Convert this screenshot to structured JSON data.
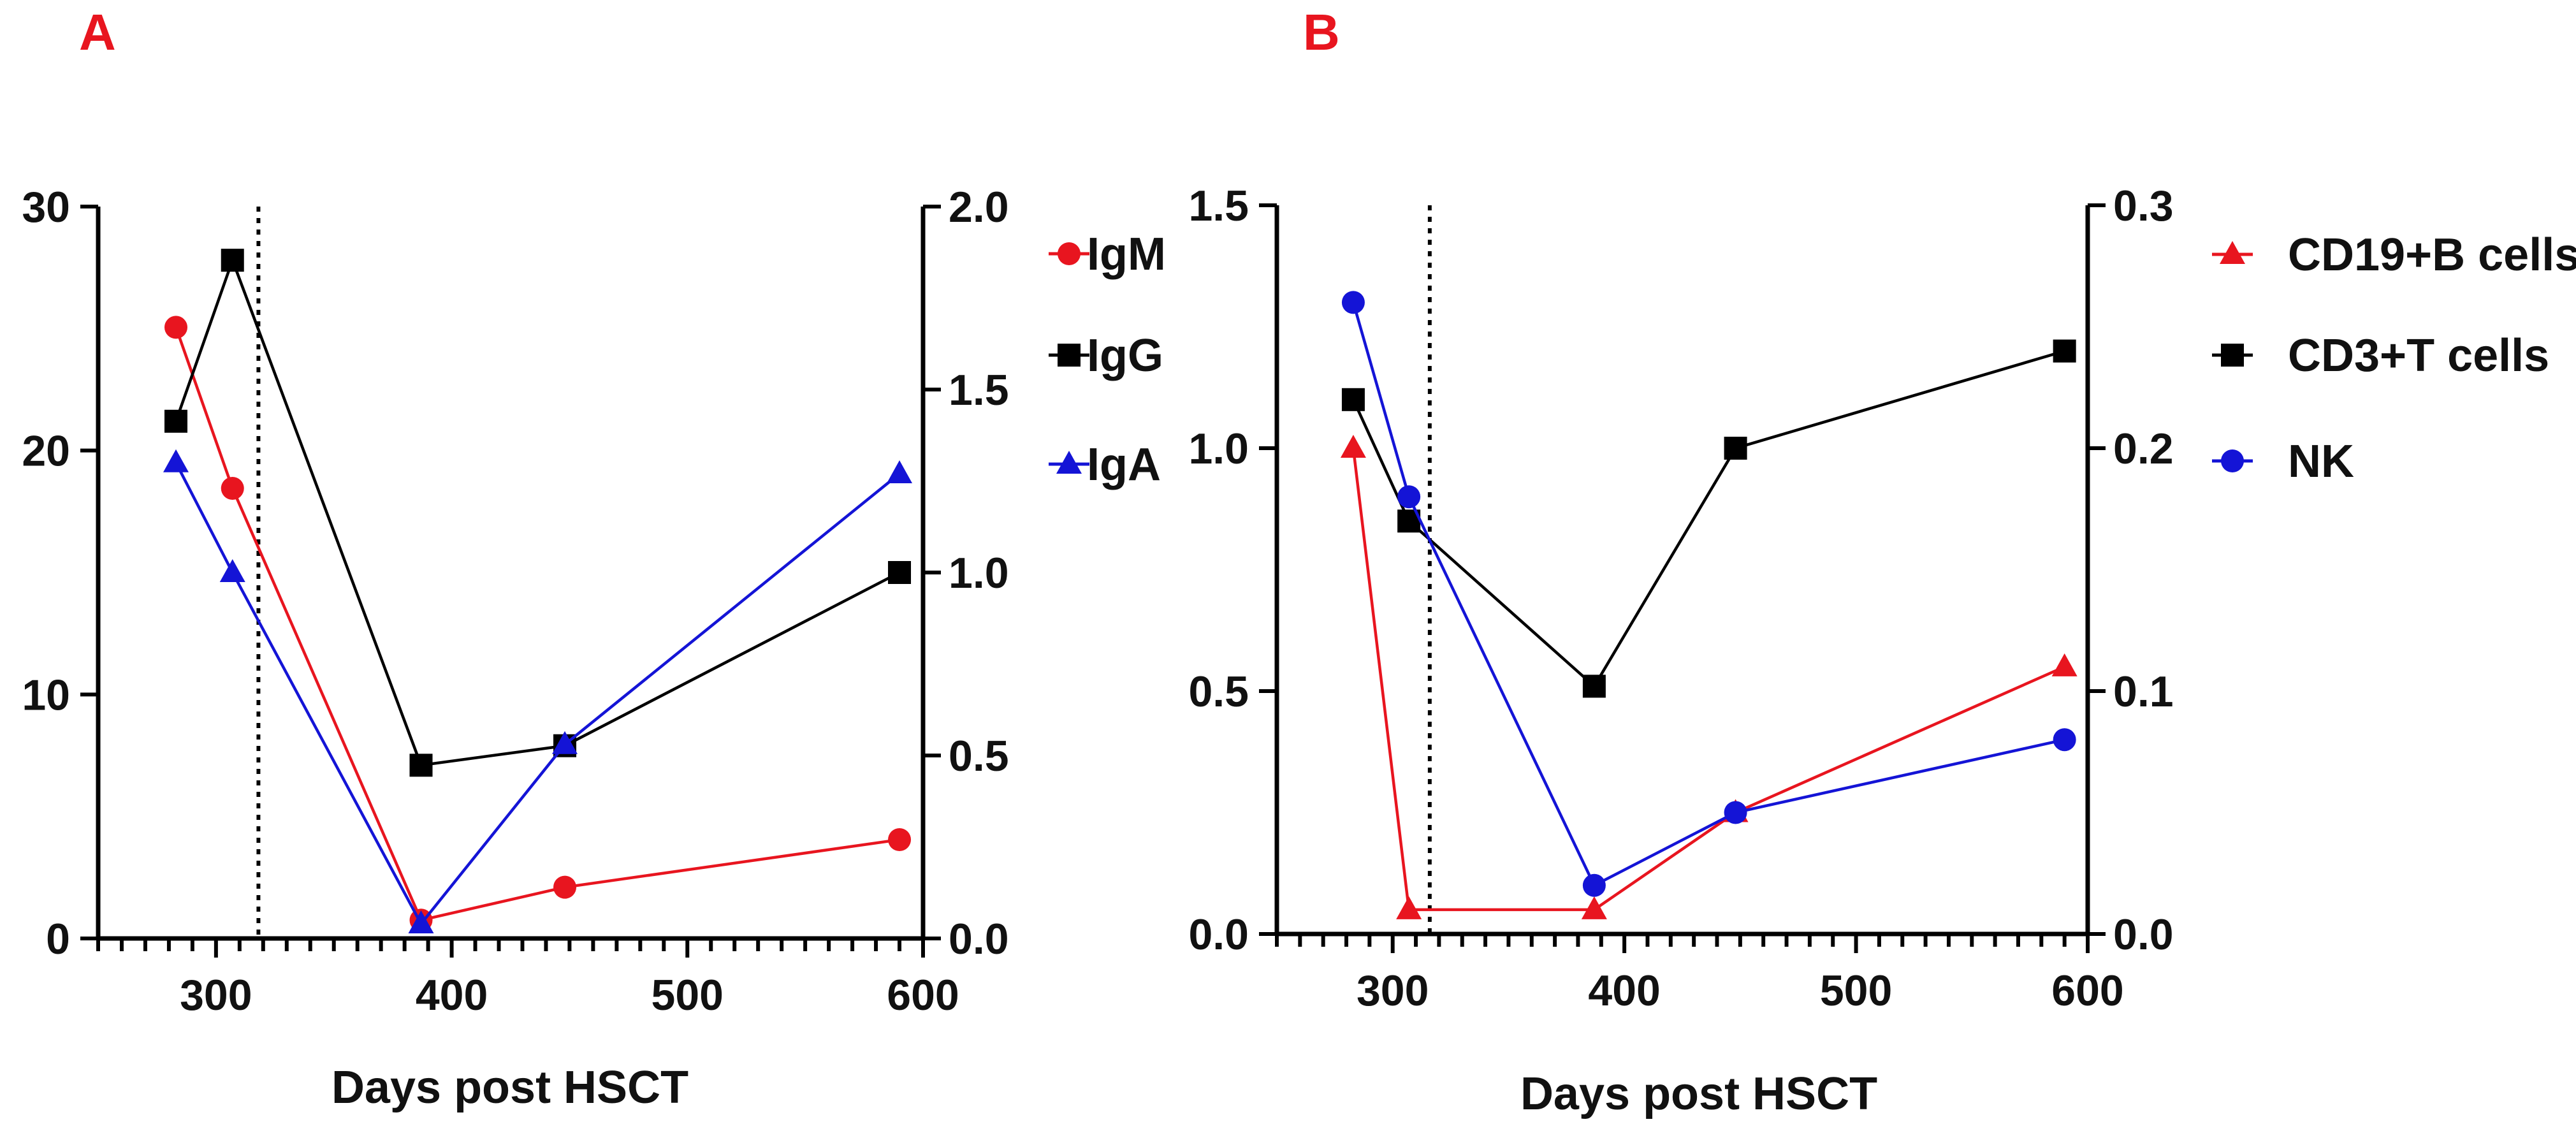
{
  "chart_data": [
    {
      "type": "line",
      "panel_label": "A",
      "xlabel": "Days post HSCT",
      "xlim": [
        250,
        600
      ],
      "x_ticks": [
        "300",
        "400",
        "500",
        "600"
      ],
      "left_axis": {
        "ylim": [
          0,
          30
        ],
        "ticks": [
          "0",
          "10",
          "20",
          "30"
        ]
      },
      "right_axis": {
        "ylim": [
          0,
          2.0
        ],
        "ticks": [
          "0.0",
          "0.5",
          "1.0",
          "1.5",
          "2.0"
        ]
      },
      "reference_line_x": 318,
      "legend_position": "right",
      "series": [
        {
          "name": "IgM",
          "marker": "circle",
          "color": "#e8151f",
          "axis": "right",
          "x": [
            283,
            307,
            387,
            448,
            590
          ],
          "values": [
            1.67,
            1.23,
            0.05,
            0.14,
            0.27
          ]
        },
        {
          "name": "IgG",
          "marker": "square",
          "color": "#000000",
          "axis": "left",
          "x": [
            283,
            307,
            387,
            448,
            590
          ],
          "values": [
            21.2,
            27.8,
            7.1,
            7.9,
            15.0
          ]
        },
        {
          "name": "IgA",
          "marker": "triangle",
          "color": "#1414d6",
          "axis": "right",
          "x": [
            283,
            307,
            387,
            448,
            590
          ],
          "values": [
            1.3,
            1.0,
            0.04,
            0.53,
            1.27
          ]
        }
      ]
    },
    {
      "type": "line",
      "panel_label": "B",
      "xlabel": "Days post HSCT",
      "xlim": [
        250,
        600
      ],
      "x_ticks": [
        "300",
        "400",
        "500",
        "600"
      ],
      "left_axis": {
        "ylim": [
          0,
          1.5
        ],
        "ticks": [
          "0.0",
          "0.5",
          "1.0",
          "1.5"
        ]
      },
      "right_axis": {
        "ylim": [
          0,
          0.3
        ],
        "ticks": [
          "0.0",
          "0.1",
          "0.2",
          "0.3"
        ]
      },
      "reference_line_x": 316,
      "legend_position": "right",
      "series": [
        {
          "name": "CD19+B cells",
          "marker": "triangle",
          "color": "#e8151f",
          "axis": "right",
          "x": [
            283,
            307,
            387,
            448,
            590
          ],
          "values": [
            0.2,
            0.01,
            0.01,
            0.05,
            0.11
          ]
        },
        {
          "name": "CD3+T cells",
          "marker": "square",
          "color": "#000000",
          "axis": "left",
          "x": [
            283,
            307,
            387,
            448,
            590
          ],
          "values": [
            1.1,
            0.85,
            0.51,
            1.0,
            1.2
          ]
        },
        {
          "name": "NK",
          "marker": "circle",
          "color": "#1414d6",
          "axis": "right",
          "x": [
            283,
            307,
            387,
            448,
            590
          ],
          "values": [
            0.26,
            0.18,
            0.02,
            0.05,
            0.08
          ]
        }
      ]
    }
  ]
}
